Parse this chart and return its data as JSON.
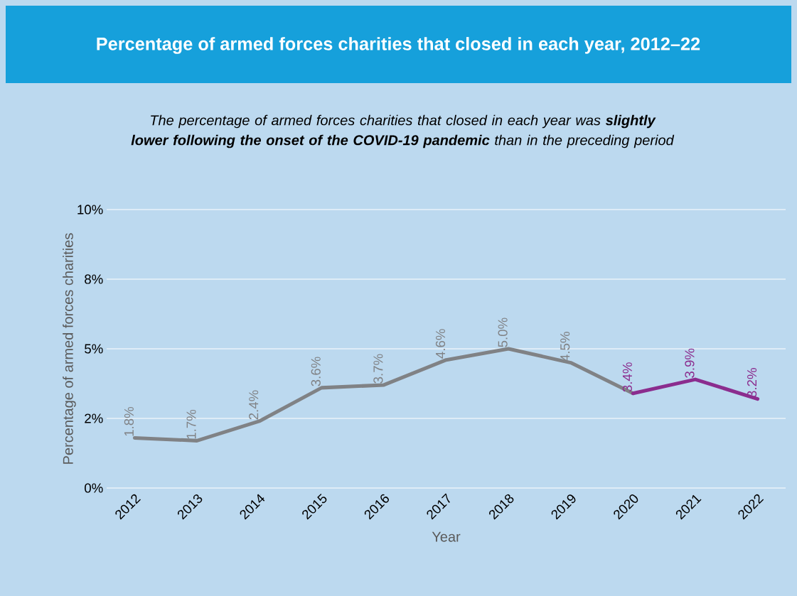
{
  "chart_data": {
    "type": "line",
    "title": "Percentage of armed forces charities that closed in each year, 2012–22",
    "subtitle": "The percentage of armed forces charities that closed in each year was **slightly lower following the onset of the COVID-19 pandemic** than in the preceding period",
    "xlabel": "Year",
    "ylabel": "Percentage of armed forces charities",
    "categories": [
      "2012",
      "2013",
      "2014",
      "2015",
      "2016",
      "2017",
      "2018",
      "2019",
      "2020",
      "2021",
      "2022"
    ],
    "series": [
      {
        "color": "#808285",
        "values": [
          1.8,
          1.7,
          2.4,
          3.6,
          3.7,
          4.6,
          5.0,
          4.5,
          3.4,
          null,
          null
        ],
        "value_labels": [
          "1.8%",
          "1.7%",
          "2.4%",
          "3.6%",
          "3.7%",
          "4.6%",
          "5.0%",
          "4.5%",
          null,
          null,
          null
        ]
      },
      {
        "color": "#8b2d8e",
        "values": [
          null,
          null,
          null,
          null,
          null,
          null,
          null,
          null,
          3.4,
          3.9,
          3.2
        ],
        "value_labels": [
          null,
          null,
          null,
          null,
          null,
          null,
          null,
          null,
          "3.4%",
          "3.9%",
          "3.2%"
        ]
      }
    ],
    "ylim": [
      0,
      10
    ],
    "yticks": [
      {
        "value": 0,
        "label": "0%"
      },
      {
        "value": 2.5,
        "label": "2%"
      },
      {
        "value": 5,
        "label": "5%"
      },
      {
        "value": 7.5,
        "label": "8%"
      },
      {
        "value": 10,
        "label": "10%"
      }
    ],
    "grid": "y",
    "marker": "none",
    "line_style": "solid"
  }
}
